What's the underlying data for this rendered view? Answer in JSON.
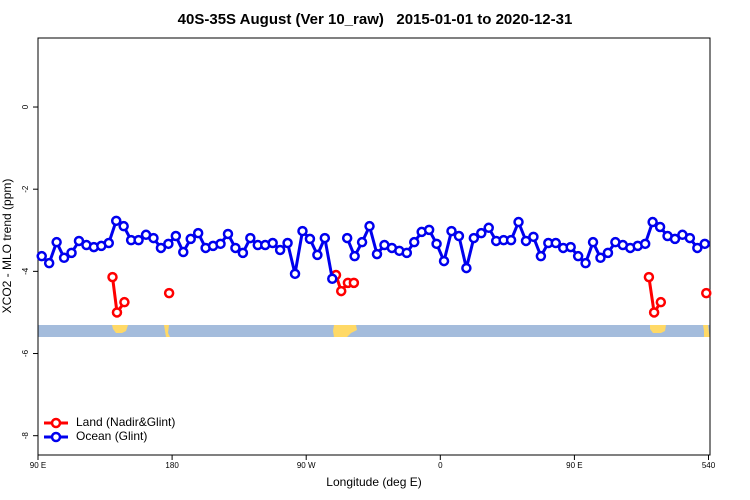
{
  "chart_data": {
    "type": "line",
    "title": "40S-35S August (Ver 10_raw)   2015-01-01 to 2020-12-31",
    "x_label": "Longitude (deg E)",
    "y_label": "XCO2 - MLO trend (ppm)",
    "xlim": [
      90,
      541
    ],
    "ylim": [
      -8.47,
      1.68
    ],
    "xticks": [
      {
        "value": 90,
        "label": "90 E"
      },
      180,
      {
        "value": 270,
        "label": "90 W"
      },
      {
        "value": 360,
        "label": "0"
      },
      {
        "value": 450,
        "label": "90 E"
      },
      540
    ],
    "yticks": [
      0,
      -2,
      -4,
      -6,
      -8
    ],
    "legend": "bottom-left",
    "series": [
      {
        "name": "Land (Nadir&Glint)",
        "color": "#ff0000",
        "x": [
          140,
          143,
          148,
          160,
          178,
          200,
          290,
          293.5,
          298,
          302,
          400,
          500,
          503.5,
          508,
          520,
          538.5
        ],
        "values": [
          -4.14,
          -5.0,
          -4.75,
          null,
          -4.53,
          null,
          -4.09,
          -4.48,
          -4.28,
          -4.28,
          null,
          -4.14,
          -5.0,
          -4.75,
          null,
          -4.53
        ]
      },
      {
        "name": "Ocean (Glint)",
        "color": "#0000ee",
        "x": [
          92.5,
          97.5,
          102.5,
          107.5,
          112.5,
          117.5,
          122.5,
          127.5,
          132.5,
          137.5,
          142.5,
          147.5,
          152.5,
          157.5,
          162.5,
          167.5,
          172.5,
          177.5,
          182.5,
          187.5,
          192.5,
          197.5,
          202.5,
          207.5,
          212.5,
          217.5,
          222.5,
          227.5,
          232.5,
          237.5,
          242.5,
          247.5,
          252.5,
          257.5,
          262.5,
          267.5,
          272.5,
          277.5,
          282.5,
          287.5,
          292.5,
          297.5,
          302.5,
          307.5,
          312.5,
          317.5,
          322.5,
          327.5,
          332.5,
          337.5,
          342.5,
          347.5,
          352.5,
          357.5,
          362.5,
          367.5,
          372.5,
          377.5,
          382.5,
          387.5,
          392.5,
          397.5,
          402.5,
          407.5,
          412.5,
          417.5,
          422.5,
          427.5,
          432.5,
          437.5,
          442.5,
          447.5,
          452.5,
          457.5,
          462.5,
          467.5,
          472.5,
          477.5,
          482.5,
          487.5,
          492.5,
          497.5,
          502.5,
          507.5,
          512.5,
          517.5,
          522.5,
          527.5,
          532.5,
          537.5
        ],
        "values": [
          -3.63,
          -3.8,
          -3.29,
          -3.67,
          -3.55,
          -3.26,
          -3.36,
          -3.41,
          -3.38,
          -3.31,
          -2.77,
          -2.9,
          -3.24,
          -3.24,
          -3.11,
          -3.19,
          -3.43,
          -3.33,
          -3.14,
          -3.53,
          -3.21,
          -3.07,
          -3.43,
          -3.38,
          -3.33,
          -3.09,
          -3.43,
          -3.55,
          -3.19,
          -3.36,
          -3.36,
          -3.31,
          -3.48,
          -3.31,
          -4.06,
          -3.02,
          -3.21,
          -3.6,
          -3.19,
          -4.18,
          null,
          -3.19,
          -3.63,
          -3.29,
          -2.9,
          -3.58,
          -3.36,
          -3.43,
          -3.5,
          -3.55,
          -3.29,
          -3.04,
          -2.99,
          -3.33,
          -3.75,
          -3.02,
          -3.14,
          -3.92,
          -3.19,
          -3.07,
          -2.94,
          -3.26,
          -3.24,
          -3.24,
          -2.8,
          -3.26,
          -3.16,
          -3.63,
          -3.31,
          -3.31,
          -3.43,
          -3.41,
          -3.63,
          -3.8,
          -3.29,
          -3.67,
          -3.55,
          -3.29,
          -3.36,
          -3.43,
          -3.38,
          -3.33,
          -2.8,
          -2.92,
          -3.14,
          -3.21,
          -3.11,
          -3.19,
          -3.43,
          -3.33
        ]
      }
    ]
  }
}
